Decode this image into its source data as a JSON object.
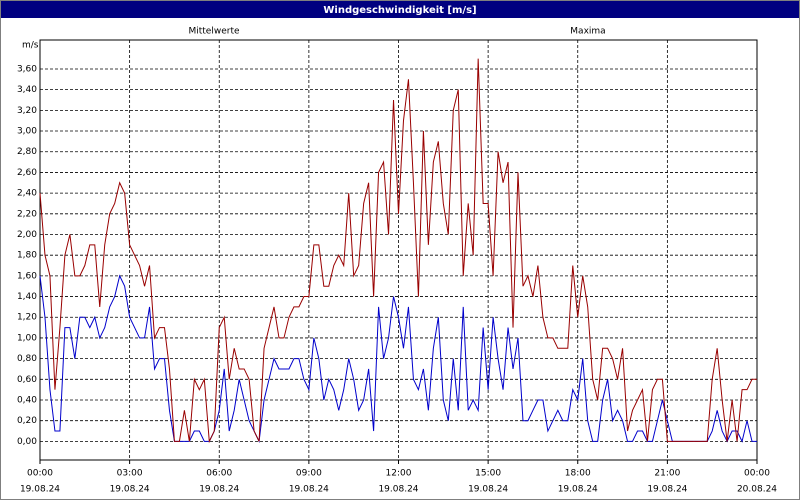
{
  "chart_data": {
    "type": "line",
    "title": "Windgeschwindigkeit [m/s]",
    "y_label": "m/s",
    "grid": true,
    "x": [
      0,
      10,
      20,
      30,
      40,
      50,
      60,
      70,
      80,
      90,
      100,
      110,
      120,
      130,
      140,
      150,
      160,
      170,
      180,
      190,
      200,
      210,
      220,
      230,
      240,
      250,
      260,
      270,
      280,
      290,
      300,
      310,
      320,
      330,
      340,
      350,
      360,
      370,
      380,
      390,
      400,
      410,
      420,
      430,
      440,
      450,
      460,
      470,
      480,
      490,
      500,
      510,
      520,
      530,
      540,
      550,
      560,
      570,
      580,
      590,
      600,
      610,
      620,
      630,
      640,
      650,
      660,
      670,
      680,
      690,
      700,
      710,
      720,
      730,
      740,
      750,
      760,
      770,
      780,
      790,
      800,
      810,
      820,
      830,
      840,
      850,
      860,
      870,
      880,
      890,
      900,
      910,
      920,
      930,
      940,
      950,
      960,
      970,
      980,
      990,
      1000,
      1010,
      1020,
      1030,
      1040,
      1050,
      1060,
      1070,
      1080,
      1090,
      1100,
      1110,
      1120,
      1130,
      1140,
      1150,
      1160,
      1170,
      1180,
      1190,
      1200,
      1210,
      1220,
      1230,
      1240,
      1250,
      1260,
      1270,
      1280,
      1290,
      1300,
      1310,
      1320,
      1330,
      1340,
      1350,
      1360,
      1370,
      1380,
      1390,
      1400,
      1410,
      1420,
      1430,
      1440
    ],
    "xlim": [
      0,
      1440
    ],
    "xticks": [
      {
        "value": 0,
        "label": [
          "00:00",
          "19.08.24"
        ]
      },
      {
        "value": 180,
        "label": [
          "03:00",
          "19.08.24"
        ]
      },
      {
        "value": 360,
        "label": [
          "06:00",
          "19.08.24"
        ]
      },
      {
        "value": 540,
        "label": [
          "09:00",
          "19.08.24"
        ]
      },
      {
        "value": 720,
        "label": [
          "12:00",
          "19.08.24"
        ]
      },
      {
        "value": 900,
        "label": [
          "15:00",
          "19.08.24"
        ]
      },
      {
        "value": 1080,
        "label": [
          "18:00",
          "19.08.24"
        ]
      },
      {
        "value": 1260,
        "label": [
          "21:00",
          "19.08.24"
        ]
      },
      {
        "value": 1440,
        "label": [
          "00:00",
          "20.08.24"
        ]
      }
    ],
    "ylim": [
      -0.18,
      3.88
    ],
    "yticks": [
      {
        "value": 0,
        "label": "0,00"
      },
      {
        "value": 0.2,
        "label": "0,20"
      },
      {
        "value": 0.4,
        "label": "0,40"
      },
      {
        "value": 0.6,
        "label": "0,60"
      },
      {
        "value": 0.8,
        "label": "0,80"
      },
      {
        "value": 1.0,
        "label": "1,00"
      },
      {
        "value": 1.2,
        "label": "1,20"
      },
      {
        "value": 1.4,
        "label": "1,40"
      },
      {
        "value": 1.6,
        "label": "1,60"
      },
      {
        "value": 1.8,
        "label": "1,80"
      },
      {
        "value": 2.0,
        "label": "2,00"
      },
      {
        "value": 2.2,
        "label": "2,20"
      },
      {
        "value": 2.4,
        "label": "2,40"
      },
      {
        "value": 2.6,
        "label": "2,60"
      },
      {
        "value": 2.8,
        "label": "2,80"
      },
      {
        "value": 3.0,
        "label": "3,00"
      },
      {
        "value": 3.2,
        "label": "3,20"
      },
      {
        "value": 3.4,
        "label": "3,40"
      },
      {
        "value": 3.6,
        "label": "3,60"
      }
    ],
    "series": [
      {
        "name": "Mittelwerte",
        "color": "#0000cc",
        "values": [
          1.6,
          1.2,
          0.5,
          0.1,
          0.1,
          1.1,
          1.1,
          0.8,
          1.2,
          1.2,
          1.1,
          1.2,
          1.0,
          1.1,
          1.3,
          1.4,
          1.6,
          1.5,
          1.2,
          1.1,
          1.0,
          1.0,
          1.3,
          0.7,
          0.8,
          0.8,
          0.3,
          0,
          0,
          0,
          0,
          0.1,
          0.1,
          0,
          0,
          0.1,
          0.3,
          0.7,
          0.1,
          0.3,
          0.6,
          0.4,
          0.2,
          0.1,
          0,
          0.4,
          0.6,
          0.8,
          0.7,
          0.7,
          0.7,
          0.8,
          0.8,
          0.6,
          0.5,
          1.0,
          0.8,
          0.4,
          0.6,
          0.5,
          0.3,
          0.5,
          0.8,
          0.6,
          0.3,
          0.4,
          0.7,
          0.1,
          1.3,
          0.8,
          1.0,
          1.4,
          1.2,
          0.9,
          1.3,
          0.6,
          0.5,
          0.7,
          0.3,
          0.9,
          1.2,
          0.4,
          0.2,
          0.8,
          0.3,
          1.3,
          0.3,
          0.4,
          0.3,
          1.1,
          0.5,
          1.2,
          0.8,
          0.5,
          1.1,
          0.7,
          1.0,
          0.2,
          0.2,
          0.3,
          0.4,
          0.4,
          0.1,
          0.2,
          0.3,
          0.2,
          0.2,
          0.5,
          0.4,
          0.8,
          0.2,
          0,
          0,
          0.4,
          0.6,
          0.2,
          0.3,
          0.2,
          0,
          0,
          0.1,
          0.1,
          0,
          0,
          0.2,
          0.4,
          0.2,
          0,
          0,
          0,
          0,
          0,
          0,
          0,
          0,
          0.1,
          0.3,
          0.1,
          0,
          0.1,
          0.1,
          0,
          0.2,
          0,
          0
        ]
      },
      {
        "name": "Maxima",
        "color": "#990000",
        "values": [
          2.4,
          1.8,
          1.6,
          0.5,
          1.1,
          1.8,
          2.0,
          1.6,
          1.6,
          1.7,
          1.9,
          1.9,
          1.3,
          1.9,
          2.2,
          2.3,
          2.5,
          2.4,
          1.9,
          1.8,
          1.7,
          1.5,
          1.7,
          1.0,
          1.1,
          1.1,
          0.7,
          0,
          0,
          0.3,
          0,
          0.6,
          0.5,
          0.6,
          0,
          0.1,
          1.1,
          1.2,
          0.6,
          0.9,
          0.7,
          0.7,
          0.6,
          0.1,
          0,
          0.9,
          1.1,
          1.3,
          1.0,
          1.0,
          1.2,
          1.3,
          1.3,
          1.4,
          1.4,
          1.9,
          1.9,
          1.5,
          1.5,
          1.7,
          1.8,
          1.7,
          2.4,
          1.6,
          1.7,
          2.3,
          2.5,
          1.4,
          2.6,
          2.7,
          2.0,
          3.3,
          2.2,
          3.1,
          3.5,
          2.5,
          1.4,
          3.0,
          1.9,
          2.7,
          2.9,
          2.3,
          2.0,
          3.2,
          3.4,
          1.6,
          2.3,
          1.8,
          3.7,
          2.3,
          2.3,
          1.6,
          2.8,
          2.5,
          2.7,
          1.1,
          2.6,
          1.5,
          1.6,
          1.4,
          1.7,
          1.2,
          1.0,
          1.0,
          0.9,
          0.9,
          0.9,
          1.7,
          1.2,
          1.6,
          1.3,
          0.6,
          0.4,
          0.9,
          0.9,
          0.8,
          0.6,
          0.9,
          0.1,
          0.3,
          0.4,
          0.5,
          0,
          0.5,
          0.6,
          0.6,
          0,
          0,
          0,
          0,
          0,
          0,
          0,
          0,
          0,
          0.6,
          0.9,
          0.4,
          0,
          0.4,
          0,
          0.5,
          0.5,
          0.6,
          0.6
        ]
      }
    ]
  }
}
